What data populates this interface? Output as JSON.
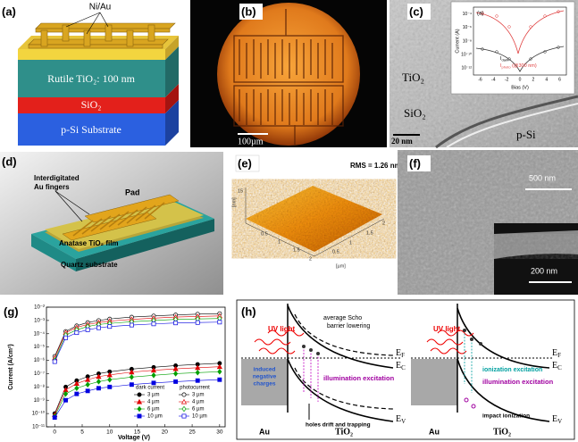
{
  "panels": {
    "a": {
      "label": "(a)",
      "electrode": "Ni/Au",
      "layers": [
        "Rutile TiO₂: 100 nm",
        "SiO₂",
        "p-Si Substrate"
      ]
    },
    "b": {
      "label": "(b)",
      "scale_bar": "100µm"
    },
    "c": {
      "label": "(c)",
      "regions": [
        "TiO₂",
        "SiO₂",
        "p-Si"
      ],
      "scale_bar": "20 nm",
      "inset": {
        "label": "(a)",
        "y_label": "Current (A)",
        "x_label": "Bias (V)",
        "xticks": [
          "-6",
          "-4",
          "-2",
          "0",
          "2",
          "4",
          "6"
        ],
        "yticks": [
          "10⁻⁴",
          "10⁻⁶",
          "10⁻⁸",
          "10⁻¹⁰",
          "10⁻¹²"
        ],
        "legend": [
          {
            "main": "I",
            "sub": "dark"
          },
          {
            "main": "I",
            "sub": "photo",
            "note": " (@300 nm)"
          }
        ]
      }
    },
    "d": {
      "label": "(d)",
      "pad": "Pad",
      "fingers": [
        "Interdigitated",
        "Au fingers"
      ],
      "film": "Anatase TiO₂ film",
      "substrate": "Quartz substrate"
    },
    "e": {
      "label": "(e)",
      "rms": "RMS = 1.26 nm",
      "front_ticks": [
        "0.5",
        "1",
        "1.5",
        "2"
      ],
      "side_ticks": [
        "0.5",
        "1",
        "1.5",
        "2"
      ],
      "unit": "[µm]",
      "z_tick": "15",
      "z_unit": "[nm]"
    },
    "f": {
      "label": "(f)",
      "scale_bar": "500 nm",
      "inset_scale_bar": "200 nm"
    },
    "h": {
      "label": "(h)",
      "left": {
        "uv": "UV light",
        "barrier": [
          "average Scho",
          "barrier lowering"
        ],
        "ec": {
          "main": "E",
          "sub": "C"
        },
        "ef": {
          "main": "E",
          "sub": "F"
        },
        "ev": {
          "main": "E",
          "sub": "V"
        },
        "charges": [
          "induced",
          "negative",
          "charges"
        ],
        "excitation": "illumination excitation",
        "holes": "holes drift and trapping",
        "metal": "Au",
        "semi": "TiO₂"
      },
      "right": {
        "uv": "UV light",
        "ec": {
          "main": "E",
          "sub": "C"
        },
        "ef": {
          "main": "E",
          "sub": "F"
        },
        "ev": {
          "main": "E",
          "sub": "V"
        },
        "ionization": "ionization excitation",
        "excitation": "illumination excitation",
        "impact": "impact ionization",
        "metal": "Au",
        "semi": "TiO₂"
      }
    }
  },
  "chart_data": {
    "type": "line",
    "panel_label": "(g)",
    "x_label": "Voltage (V)",
    "y_label": "Current (A/cm²)",
    "log_y": true,
    "xlim": [
      -1.5,
      31
    ],
    "xticks": [
      0,
      5,
      10,
      15,
      20,
      25,
      30
    ],
    "ylim": [
      1e-11,
      0.01
    ],
    "yticks": [
      {
        "value": 0.01,
        "label": "10⁻²"
      },
      {
        "value": 0.001,
        "label": "10⁻³"
      },
      {
        "value": 0.0001,
        "label": "10⁻⁴"
      },
      {
        "value": 1e-05,
        "label": "10⁻⁵"
      },
      {
        "value": 1e-06,
        "label": "10⁻⁶"
      },
      {
        "value": 1e-07,
        "label": "10⁻⁷"
      },
      {
        "value": 1e-08,
        "label": "10⁻⁸"
      },
      {
        "value": 1e-09,
        "label": "10⁻⁹"
      },
      {
        "value": 1e-10,
        "label": "10⁻¹⁰"
      },
      {
        "value": 1e-11,
        "label": "10⁻¹¹"
      }
    ],
    "x": [
      0,
      2,
      4,
      6,
      8,
      10,
      14,
      18,
      22,
      26,
      30
    ],
    "legend_groups": [
      {
        "title": "dark current",
        "filled": true,
        "series": [
          {
            "name": "3 µm",
            "color": "#000000",
            "marker": "circle",
            "values": [
              1e-10,
              1e-08,
              3e-08,
              6e-08,
              1e-07,
              1.4e-07,
              2.2e-07,
              3e-07,
              4e-07,
              5e-07,
              6e-07
            ]
          },
          {
            "name": "4 µm",
            "color": "#e00000",
            "marker": "triangle",
            "values": [
              8e-11,
              6e-09,
              1.8e-08,
              3.5e-08,
              6e-08,
              8e-08,
              1.3e-07,
              1.8e-07,
              2.3e-07,
              2.8e-07,
              3.3e-07
            ]
          },
          {
            "name": "6 µm",
            "color": "#00a000",
            "marker": "diamond",
            "values": [
              6e-11,
              3e-09,
              8e-09,
              1.5e-08,
              2.5e-08,
              3.5e-08,
              5.5e-08,
              7.5e-08,
              1e-07,
              1.2e-07,
              1.4e-07
            ]
          },
          {
            "name": "10 µm",
            "color": "#0000e0",
            "marker": "square",
            "values": [
              5e-11,
              1e-09,
              3e-09,
              5e-09,
              8e-09,
              1e-08,
              1.5e-08,
              2e-08,
              2.5e-08,
              3e-08,
              3.5e-08
            ]
          }
        ]
      },
      {
        "title": "photocurrent",
        "filled": false,
        "series": [
          {
            "name": "3 µm",
            "color": "#000000",
            "marker": "circle",
            "values": [
              2e-06,
              0.00015,
              0.0004,
              0.0007,
              0.001,
              0.0013,
              0.0018,
              0.0022,
              0.0026,
              0.003,
              0.0033
            ]
          },
          {
            "name": "4 µm",
            "color": "#e00000",
            "marker": "triangle",
            "values": [
              1.5e-06,
              0.00012,
              0.0003,
              0.0005,
              0.0007,
              0.0009,
              0.0012,
              0.0015,
              0.0018,
              0.002,
              0.0022
            ]
          },
          {
            "name": "6 µm",
            "color": "#00a000",
            "marker": "diamond",
            "values": [
              1e-06,
              8e-05,
              0.0002,
              0.00035,
              0.0005,
              0.0006,
              0.0008,
              0.001,
              0.0012,
              0.0013,
              0.0014
            ]
          },
          {
            "name": "10 µm",
            "color": "#0000e0",
            "marker": "square",
            "values": [
              8e-07,
              5e-05,
              0.00012,
              0.0002,
              0.00028,
              0.00035,
              0.00045,
              0.00055,
              0.00065,
              0.0007,
              0.00075
            ]
          }
        ]
      }
    ]
  }
}
